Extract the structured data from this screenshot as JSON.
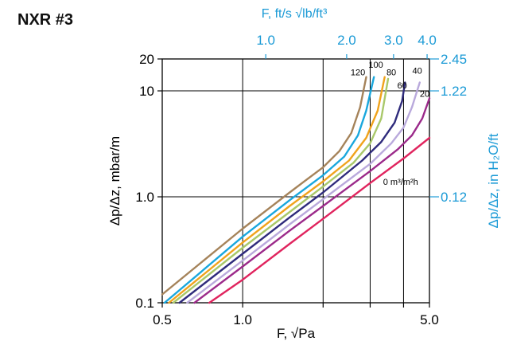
{
  "page_label": "NXR #3",
  "chart_data": {
    "type": "line",
    "title": "",
    "xlabel_bottom": "F, √Pa",
    "xlabel_top": "F, ft/s √lb/ft³",
    "ylabel_left": "Δp/Δz, mbar/m",
    "ylabel_right": "Δp/Δz, in H₂O/ft",
    "x_scale": "log",
    "y_scale": "log",
    "xlim": [
      0.5,
      5.0
    ],
    "ylim": [
      0.1,
      20
    ],
    "x_ticks_bottom": [
      {
        "value": 0.5,
        "label": "0.5"
      },
      {
        "value": 1.0,
        "label": "1.0"
      },
      {
        "value": 2.0,
        "label": ""
      },
      {
        "value": 3.0,
        "label": ""
      },
      {
        "value": 4.0,
        "label": ""
      },
      {
        "value": 5.0,
        "label": "5.0"
      }
    ],
    "x_ticks_top": [
      {
        "value": 1.22,
        "label": "1.0"
      },
      {
        "value": 2.45,
        "label": "2.0"
      },
      {
        "value": 3.67,
        "label": "3.0"
      },
      {
        "value": 4.9,
        "label": "4.0"
      }
    ],
    "y_ticks_left": [
      {
        "value": 0.1,
        "label": "0.1"
      },
      {
        "value": 1.0,
        "label": "1.0"
      },
      {
        "value": 10,
        "label": "10"
      },
      {
        "value": 20,
        "label": "20"
      }
    ],
    "y_ticks_right": [
      {
        "value": 1.0,
        "label": "0.12"
      },
      {
        "value": 10,
        "label": "1.22"
      },
      {
        "value": 20,
        "label": "2.45"
      }
    ],
    "grid": true,
    "colors": {
      "axis_secondary": "#1a9ad6",
      "axis_primary": "#000000"
    },
    "series": [
      {
        "name": "0 m³/m²h",
        "color": "#e0245e",
        "x": [
          0.75,
          1.0,
          1.5,
          2.0,
          3.0,
          4.0,
          5.0
        ],
        "y": [
          0.1,
          0.165,
          0.36,
          0.62,
          1.35,
          2.3,
          3.6
        ]
      },
      {
        "name": "20",
        "color": "#9b2a8a",
        "x": [
          0.66,
          1.0,
          1.5,
          2.0,
          3.0,
          3.8,
          4.3,
          4.7,
          5.0
        ],
        "y": [
          0.1,
          0.22,
          0.48,
          0.82,
          1.75,
          2.8,
          3.8,
          5.5,
          8.5
        ]
      },
      {
        "name": "40",
        "color": "#b9a9dc",
        "x": [
          0.62,
          1.0,
          1.5,
          2.0,
          3.0,
          3.6,
          4.0,
          4.3,
          4.6
        ],
        "y": [
          0.1,
          0.25,
          0.55,
          0.95,
          2.05,
          3.2,
          4.5,
          7.0,
          12.0
        ]
      },
      {
        "name": "60",
        "color": "#2f2b7c",
        "x": [
          0.58,
          1.0,
          1.5,
          2.0,
          2.8,
          3.3,
          3.7,
          3.95,
          4.05
        ],
        "y": [
          0.1,
          0.29,
          0.64,
          1.1,
          2.2,
          3.3,
          5.0,
          8.0,
          12.0
        ]
      },
      {
        "name": "80",
        "color": "#a9c86a",
        "x": [
          0.55,
          1.0,
          1.5,
          2.0,
          2.6,
          3.0,
          3.3,
          3.5
        ],
        "y": [
          0.1,
          0.33,
          0.72,
          1.25,
          2.1,
          3.2,
          5.5,
          13.0
        ]
      },
      {
        "name": "100",
        "color": "#f0a31c",
        "x": [
          0.53,
          1.0,
          1.5,
          2.0,
          2.5,
          2.9,
          3.2,
          3.4
        ],
        "y": [
          0.1,
          0.37,
          0.82,
          1.4,
          2.2,
          3.6,
          6.5,
          13.5
        ]
      },
      {
        "name": "120",
        "color": "#19a7dd",
        "x": [
          0.51,
          1.0,
          1.5,
          2.0,
          2.4,
          2.7,
          2.9,
          3.1
        ],
        "y": [
          0.1,
          0.42,
          0.93,
          1.6,
          2.4,
          3.8,
          6.5,
          13.5
        ]
      },
      {
        "name": "",
        "color": "#a5835a",
        "x": [
          0.5,
          1.0,
          1.5,
          2.0,
          2.3,
          2.55,
          2.75,
          2.9
        ],
        "y": [
          0.12,
          0.5,
          1.1,
          1.9,
          2.7,
          4.0,
          7.0,
          13.5
        ]
      }
    ],
    "annotations": [
      {
        "text": "120",
        "x": 2.7,
        "y": 14.0
      },
      {
        "text": "100",
        "x": 3.15,
        "y": 16.5
      },
      {
        "text": "80",
        "x": 3.6,
        "y": 14.0
      },
      {
        "text": "60",
        "x": 3.95,
        "y": 10.5
      },
      {
        "text": "40",
        "x": 4.5,
        "y": 14.5
      },
      {
        "text": "20",
        "x": 4.8,
        "y": 8.8
      },
      {
        "text": "0 m³/m²h",
        "x": 3.9,
        "y": 1.3
      }
    ]
  }
}
